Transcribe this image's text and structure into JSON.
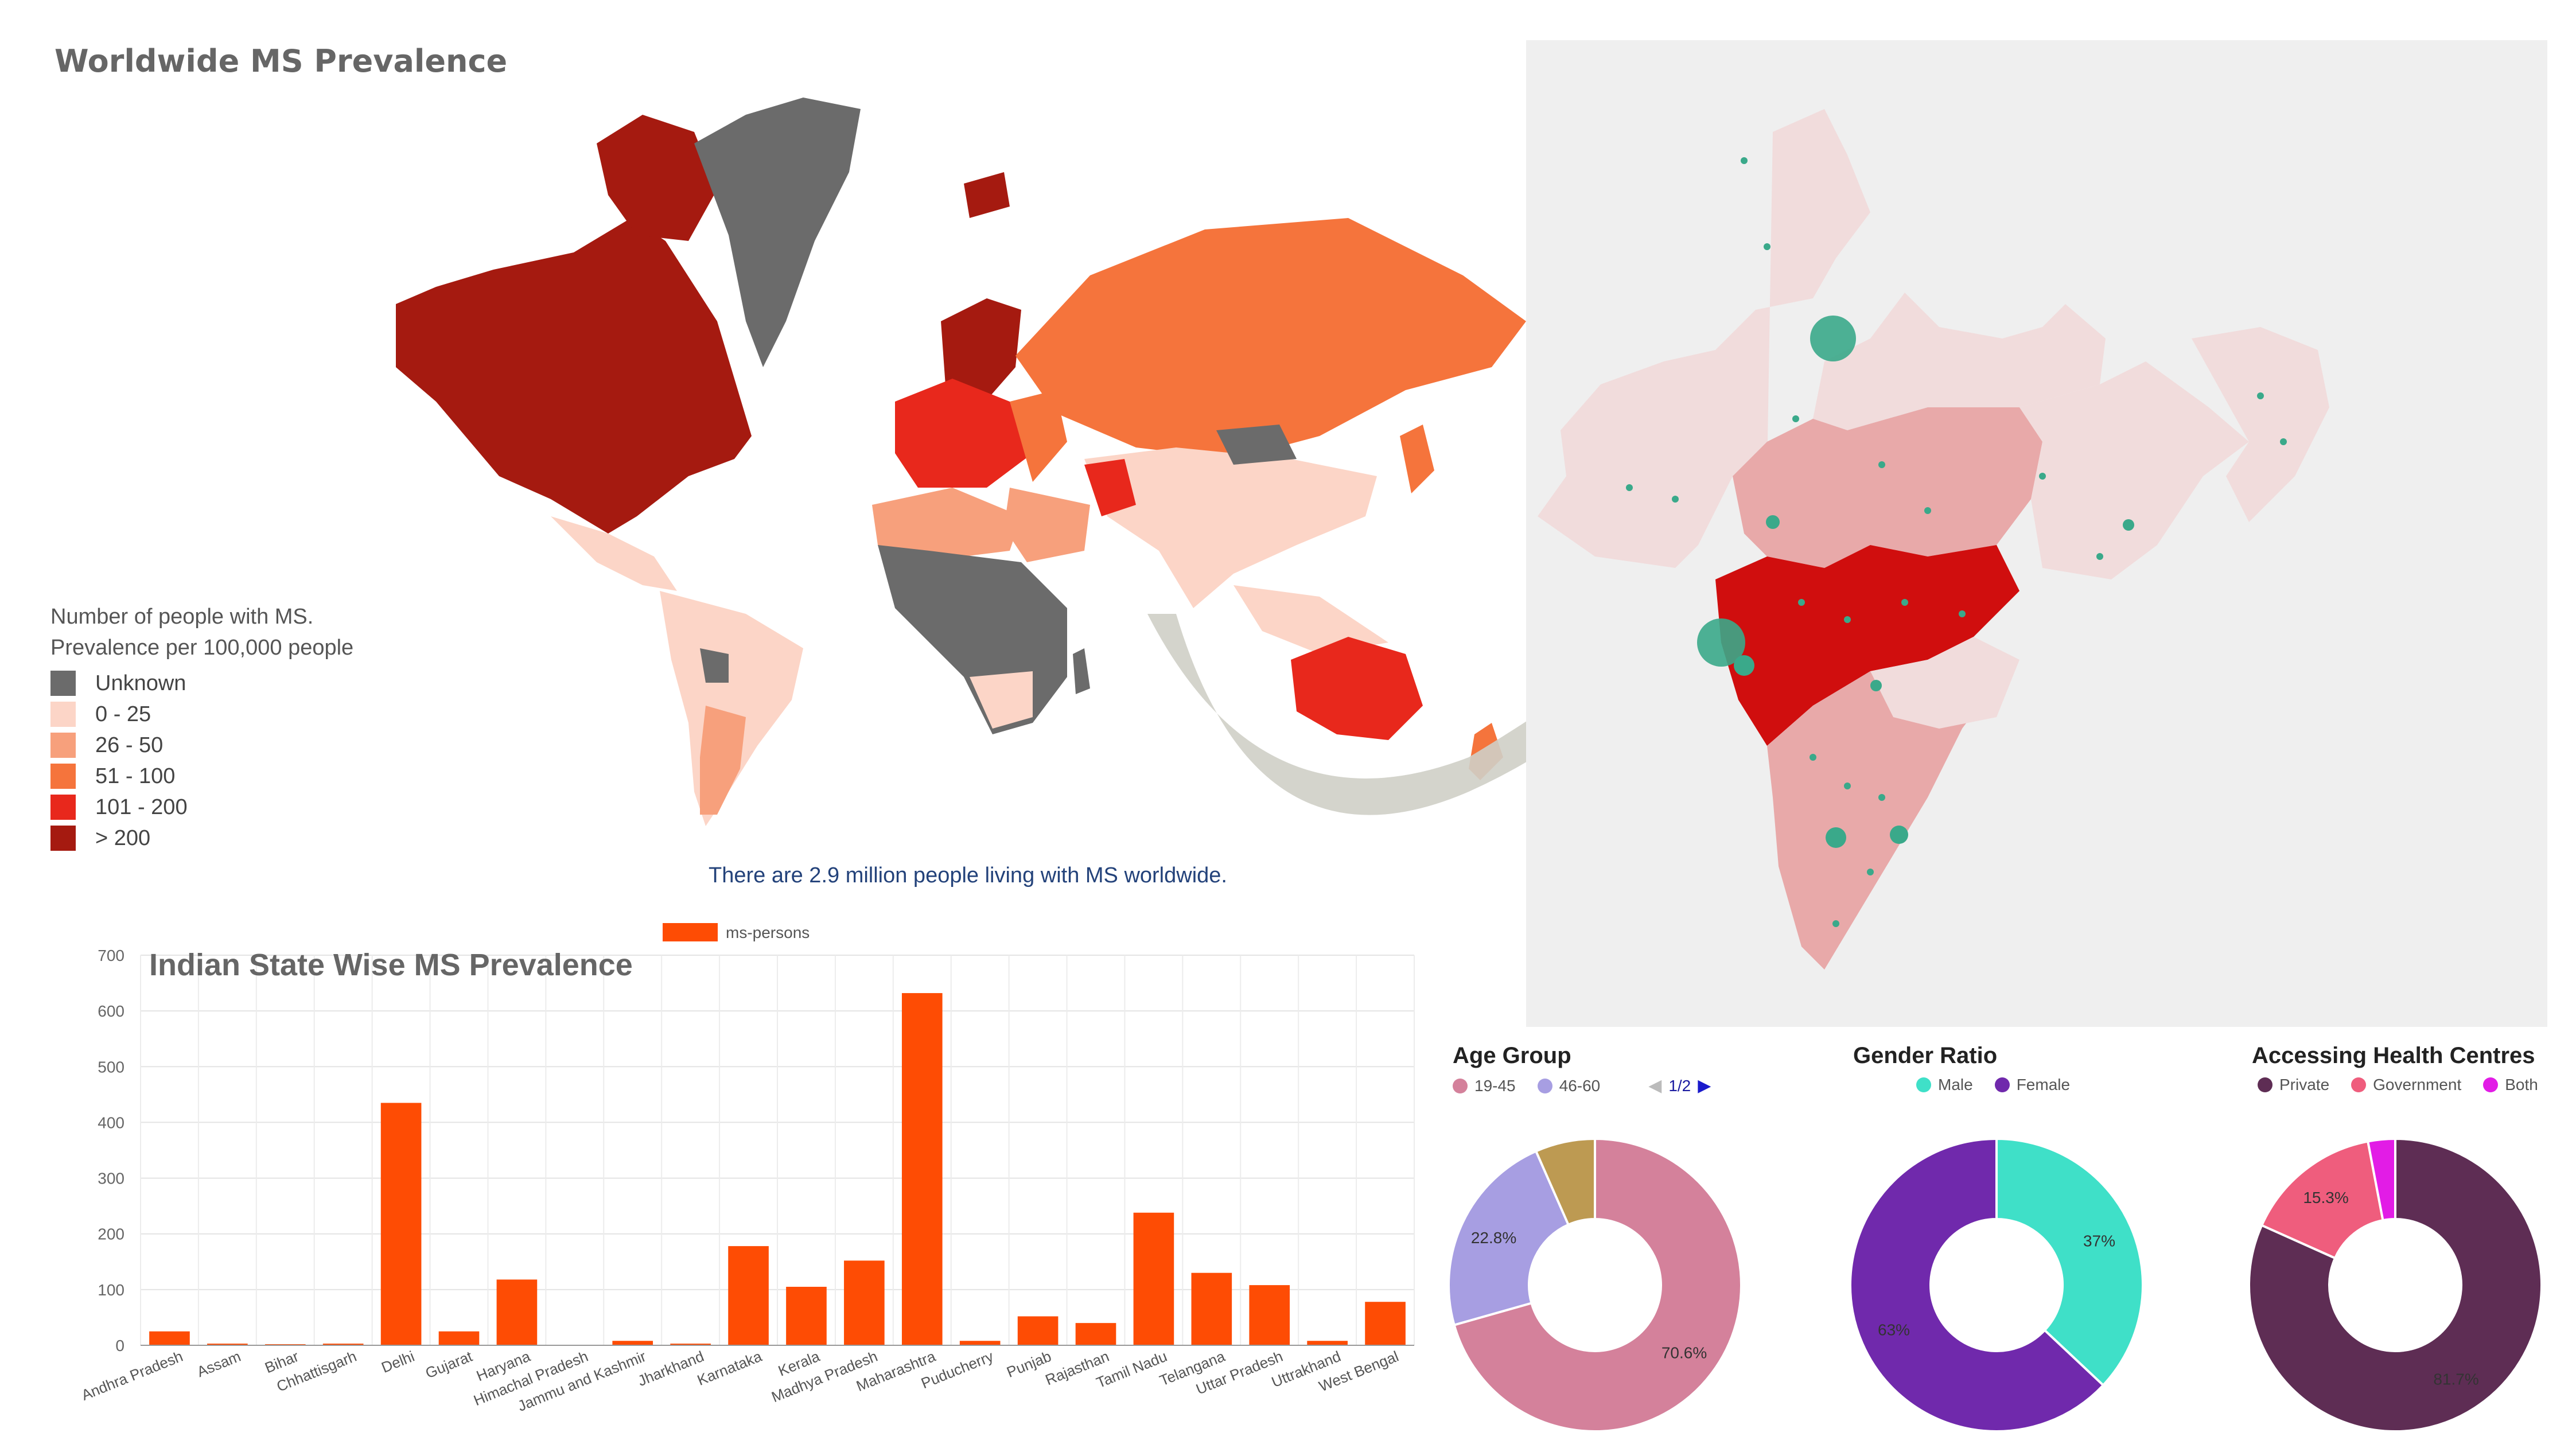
{
  "world_map": {
    "title": "Worldwide MS Prevalence",
    "legend_title_line1": "Number of people with MS.",
    "legend_title_line2": "Prevalence per 100,000 people",
    "legend": [
      {
        "label": "Unknown",
        "color": "#6b6b6b"
      },
      {
        "label": "0 - 25",
        "color": "#fcd5c7"
      },
      {
        "label": "26 - 50",
        "color": "#f7a07c"
      },
      {
        "label": "51 - 100",
        "color": "#f5743c"
      },
      {
        "label": "101 - 200",
        "color": "#e8281c"
      },
      {
        "label": "> 200",
        "color": "#a51a10"
      }
    ],
    "caption": "There are 2.9 million people living with MS worldwide."
  },
  "india_map": {
    "colors": {
      "high": "#d00e0e",
      "mid": "#e8a9a9",
      "low": "#f1dcdc",
      "bg": "#efefef",
      "marker": "#3aa98a"
    }
  },
  "chart_data": [
    {
      "type": "bar",
      "title": "Indian State Wise MS Prevalence",
      "categories": [
        "Andhra Pradesh",
        "Assam",
        "Bihar",
        "Chhattisgarh",
        "Delhi",
        "Gujarat",
        "Haryana",
        "Himachal Pradesh",
        "Jammu and Kashmir",
        "Jharkhand",
        "Karnataka",
        "Kerala",
        "Madhya Pradesh",
        "Maharashtra",
        "Puducherry",
        "Punjab",
        "Rajasthan",
        "Tamil Nadu",
        "Telangana",
        "Uttar Pradesh",
        "Uttrakhand",
        "West Bengal"
      ],
      "series": [
        {
          "name": "ms-persons",
          "color": "#fe4c04",
          "values": [
            25,
            3,
            2,
            3,
            435,
            25,
            118,
            1,
            8,
            3,
            178,
            105,
            152,
            632,
            8,
            52,
            40,
            238,
            130,
            108,
            8,
            78
          ]
        }
      ],
      "ylim": [
        0,
        700
      ],
      "yticks": [
        0,
        100,
        200,
        300,
        400,
        500,
        600,
        700
      ],
      "grid": true,
      "legend_position": "top"
    },
    {
      "type": "pie",
      "title": "Age Group",
      "labels": [
        "19-45",
        "46-60",
        "other"
      ],
      "legend_labels": [
        "19-45",
        "46-60"
      ],
      "values": [
        70.6,
        22.8,
        6.6
      ],
      "value_labels": [
        "70.6%",
        "22.8%",
        ""
      ],
      "colors": [
        "#d4819b",
        "#a79ee2",
        "#bd9a52"
      ],
      "pager": "1/2"
    },
    {
      "type": "pie",
      "title": "Gender Ratio",
      "labels": [
        "Male",
        "Female"
      ],
      "values": [
        37,
        63
      ],
      "value_labels": [
        "37%",
        "63%"
      ],
      "colors": [
        "#3fe0c8",
        "#7029ac"
      ]
    },
    {
      "type": "pie",
      "title": "Accessing Health Centres",
      "labels": [
        "Private",
        "Government",
        "Both"
      ],
      "values": [
        81.7,
        15.3,
        3.0
      ],
      "value_labels": [
        "81.7%",
        "15.3%",
        ""
      ],
      "colors": [
        "#5e2d54",
        "#ef5d7d",
        "#e21ce6"
      ]
    }
  ]
}
